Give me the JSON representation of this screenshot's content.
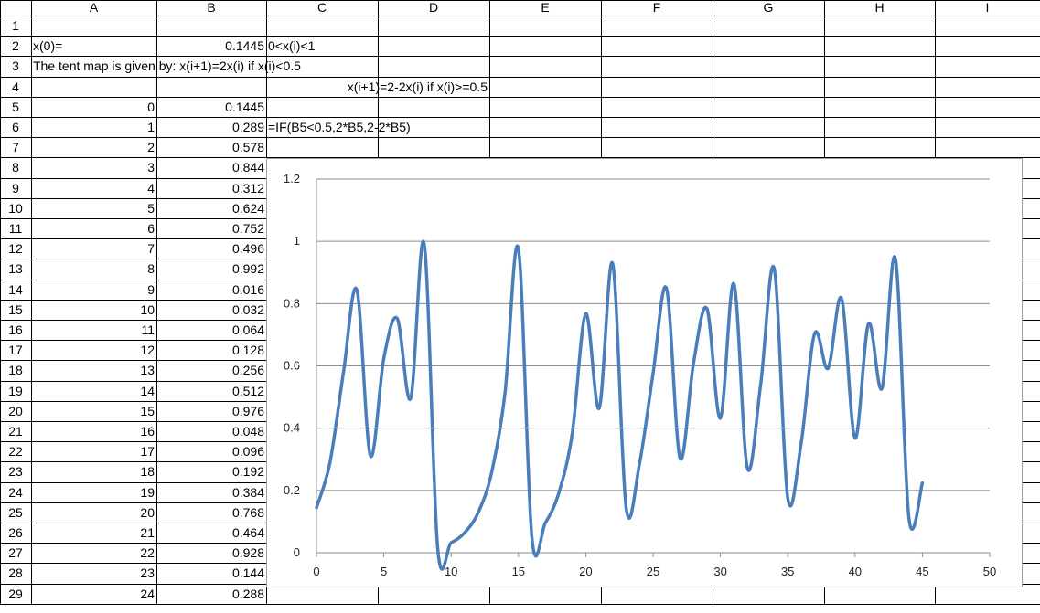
{
  "columns": [
    "A",
    "B",
    "C",
    "D",
    "E",
    "F",
    "G",
    "H",
    "I"
  ],
  "rows_visible": 29,
  "cells": {
    "A2": "x(0)=",
    "B2": "0.1445",
    "C2": "0<x(i)<1",
    "A3": "The tent map is given by:  x(i+1)=2x(i)    if  x(i)<0.5",
    "B4": "x(i+1)=2-2x(i)    if  x(i)>=0.5",
    "C6": "=IF(B5<0.5,2*B5,2-2*B5)"
  },
  "series_rows": {
    "A": [
      "0",
      "1",
      "2",
      "3",
      "4",
      "5",
      "6",
      "7",
      "8",
      "9",
      "10",
      "11",
      "12",
      "13",
      "14",
      "15",
      "16",
      "17",
      "18",
      "19",
      "20",
      "21",
      "22",
      "23",
      "24"
    ],
    "B": [
      "0.1445",
      "0.289",
      "0.578",
      "0.844",
      "0.312",
      "0.624",
      "0.752",
      "0.496",
      "0.992",
      "0.016",
      "0.032",
      "0.064",
      "0.128",
      "0.256",
      "0.512",
      "0.976",
      "0.048",
      "0.096",
      "0.192",
      "0.384",
      "0.768",
      "0.464",
      "0.928",
      "0.144",
      "0.288"
    ]
  },
  "chart_data": {
    "type": "line",
    "smoothed": true,
    "xlim": [
      0,
      50
    ],
    "ylim": [
      0,
      1.2
    ],
    "x_ticks": [
      "0",
      "5",
      "10",
      "15",
      "20",
      "25",
      "30",
      "35",
      "40",
      "45",
      "50"
    ],
    "y_ticks": [
      "0",
      "0.2",
      "0.4",
      "0.6",
      "0.8",
      "1",
      "1.2"
    ],
    "grid": "horizontal",
    "line_color": "#4a7ebb",
    "series": [
      {
        "x": [
          0,
          1,
          2,
          3,
          4,
          5,
          6,
          7,
          8,
          9,
          10,
          11,
          12,
          13,
          14,
          15,
          16,
          17,
          18,
          19,
          20,
          21,
          22,
          23,
          24,
          25,
          26,
          27,
          28,
          29,
          30,
          31,
          32,
          33,
          34,
          35,
          36,
          37,
          38,
          39,
          40,
          41,
          42,
          43,
          44,
          45
        ],
        "values": [
          0.1445,
          0.289,
          0.578,
          0.844,
          0.312,
          0.624,
          0.752,
          0.496,
          0.992,
          0.016,
          0.032,
          0.064,
          0.128,
          0.256,
          0.512,
          0.976,
          0.048,
          0.096,
          0.192,
          0.384,
          0.768,
          0.464,
          0.928,
          0.144,
          0.288,
          0.576,
          0.848,
          0.304,
          0.608,
          0.784,
          0.432,
          0.864,
          0.272,
          0.544,
          0.912,
          0.176,
          0.352,
          0.704,
          0.592,
          0.816,
          0.368,
          0.736,
          0.528,
          0.944,
          0.112,
          0.224
        ]
      }
    ]
  }
}
